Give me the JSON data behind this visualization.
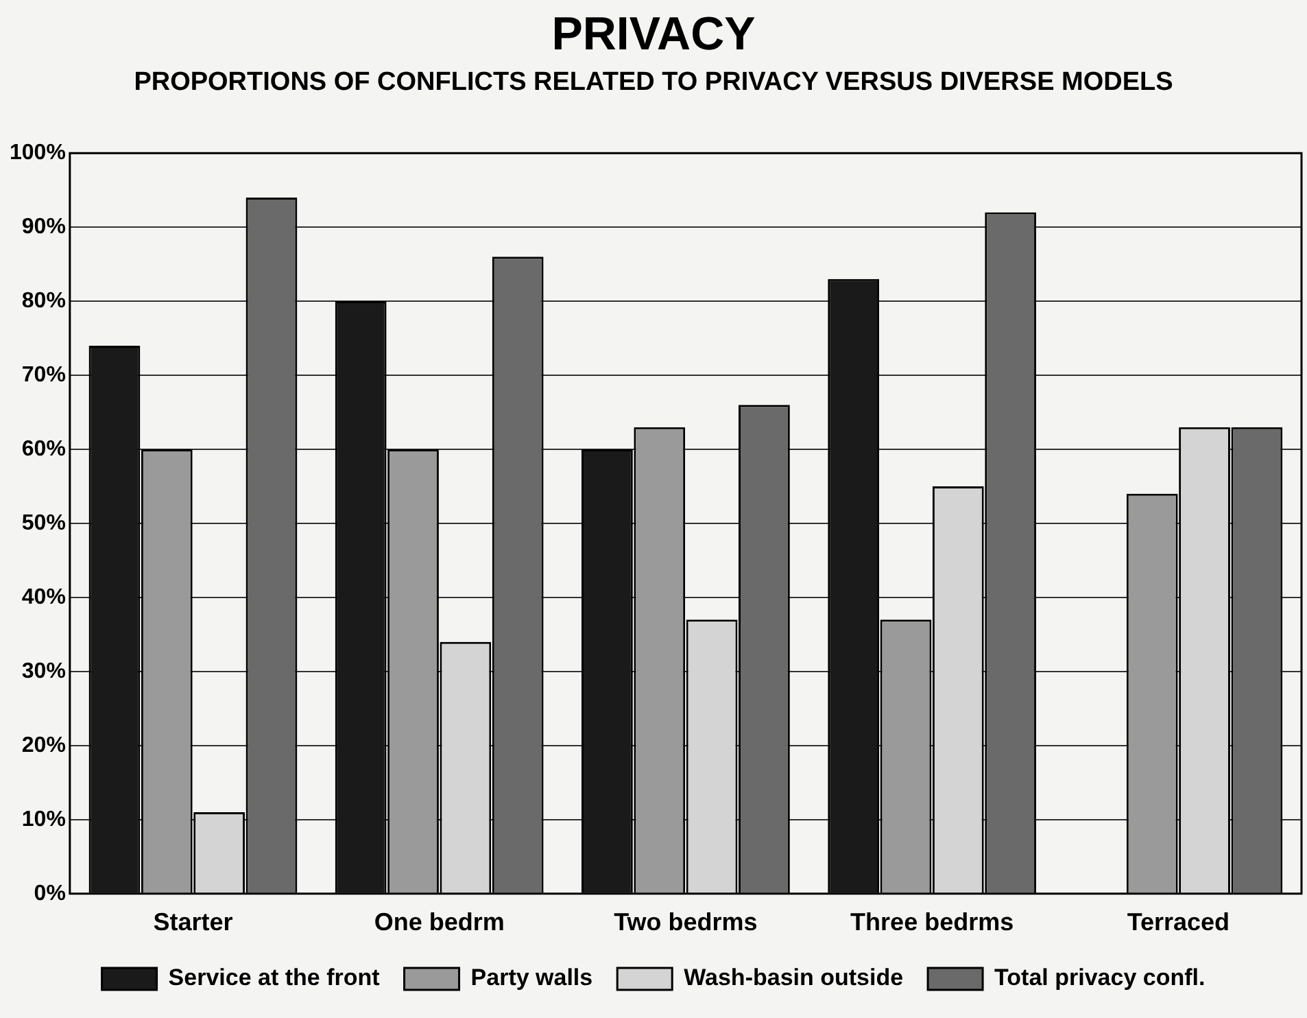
{
  "chart_data": {
    "type": "bar",
    "title": "PRIVACY",
    "subtitle": "PROPORTIONS OF CONFLICTS RELATED TO PRIVACY VERSUS DIVERSE MODELS",
    "categories": [
      "Starter",
      "One bedrm",
      "Two bedrms",
      "Three bedrms",
      "Terraced"
    ],
    "series": [
      {
        "name": "Service at the front",
        "color": "#1a1a1a",
        "values": [
          74,
          80,
          60,
          83,
          null
        ]
      },
      {
        "name": "Party walls",
        "color": "#9a9a9a",
        "values": [
          60,
          60,
          63,
          37,
          54
        ]
      },
      {
        "name": "Wash-basin outside",
        "color": "#d4d4d4",
        "values": [
          11,
          34,
          37,
          55,
          63
        ]
      },
      {
        "name": "Total privacy confl.",
        "color": "#6a6a6a",
        "values": [
          94,
          86,
          66,
          92,
          63
        ]
      }
    ],
    "ylim": [
      0,
      100
    ],
    "yticks": [
      {
        "value": 0,
        "label": "0%"
      },
      {
        "value": 10,
        "label": "10%"
      },
      {
        "value": 20,
        "label": "20%"
      },
      {
        "value": 30,
        "label": "30%"
      },
      {
        "value": 40,
        "label": "40%"
      },
      {
        "value": 50,
        "label": "50%"
      },
      {
        "value": 60,
        "label": "60%"
      },
      {
        "value": 70,
        "label": "70%"
      },
      {
        "value": 80,
        "label": "80%"
      },
      {
        "value": 90,
        "label": "90%"
      },
      {
        "value": 100,
        "label": "100%"
      }
    ],
    "grid": "y",
    "legend": "bottom"
  }
}
